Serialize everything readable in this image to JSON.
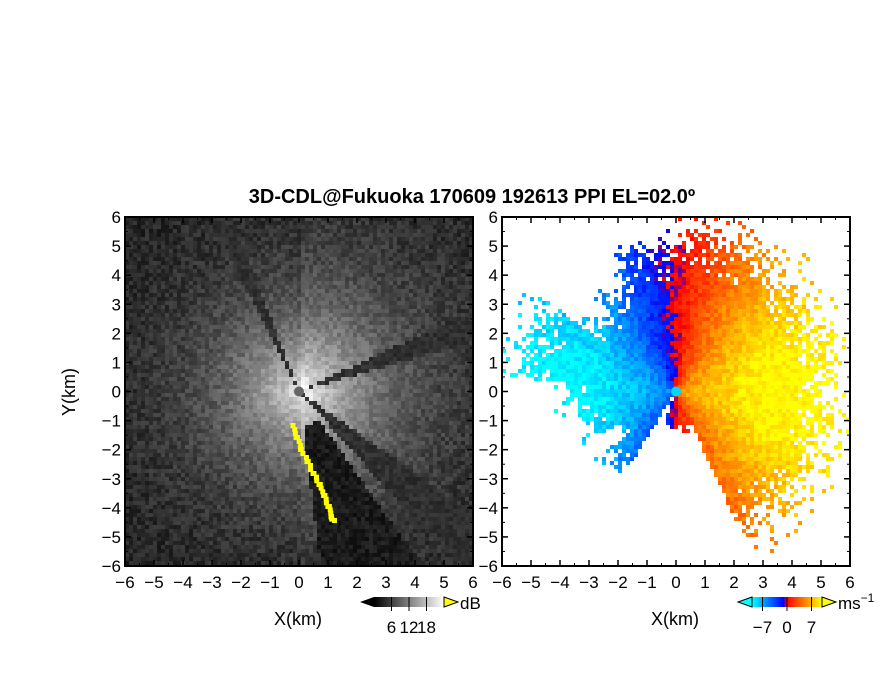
{
  "figure": {
    "title": "3D-CDL@Fukuoka 170609 192613 PPI EL=02.0º"
  },
  "chart_data": [
    {
      "type": "heatmap",
      "panel": "left",
      "xlabel": "X(km)",
      "ylabel": "Y(km)",
      "xlim": [
        -6,
        6
      ],
      "ylim": [
        -6,
        6
      ],
      "xticks": [
        "−6",
        "−5",
        "−4",
        "−3",
        "−2",
        "−1",
        "0",
        "1",
        "2",
        "3",
        "4",
        "5",
        "6"
      ],
      "yticks": [
        "6",
        "5",
        "4",
        "3",
        "2",
        "1",
        "0",
        "−1",
        "−2",
        "−3",
        "−4",
        "−5",
        "−6"
      ],
      "colorbar": {
        "unit": "dB",
        "ticks": [
          "6",
          "12",
          "18"
        ],
        "range": [
          0,
          24
        ],
        "colors": [
          "#000000",
          "#ffffff"
        ],
        "over_color": "#ffff00"
      },
      "highlight_color": "#ffff00",
      "beam_blocks_deg": [
        [
          -48,
          -35
        ],
        [
          16,
          25
        ],
        [
          111,
          117
        ],
        [
          200,
          210
        ]
      ]
    },
    {
      "type": "heatmap",
      "panel": "right",
      "xlabel": "X(km)",
      "ylabel": "Y(km)",
      "xlim": [
        -6,
        6
      ],
      "ylim": [
        -6,
        6
      ],
      "xticks": [
        "−6",
        "−5",
        "−4",
        "−3",
        "−2",
        "−1",
        "0",
        "1",
        "2",
        "3",
        "4",
        "5",
        "6"
      ],
      "yticks": [
        "6",
        "5",
        "4",
        "3",
        "2",
        "1",
        "0",
        "−1",
        "−2",
        "−3",
        "−4",
        "−5",
        "−6"
      ],
      "colorbar": {
        "unit": "ms",
        "unit_sup": "−1",
        "ticks": [
          "−7",
          "0",
          "7"
        ],
        "range": [
          -10,
          10
        ],
        "colors": [
          "#00ffff",
          "#0080ff",
          "#0000ff",
          "#ff0000",
          "#ff8000",
          "#ffff00"
        ]
      }
    }
  ]
}
